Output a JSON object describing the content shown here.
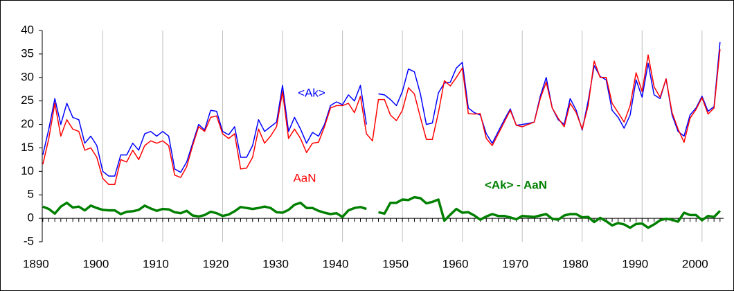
{
  "chart_data": {
    "type": "line",
    "x": [
      1890,
      1891,
      1892,
      1893,
      1894,
      1895,
      1896,
      1897,
      1898,
      1899,
      1900,
      1901,
      1902,
      1903,
      1904,
      1905,
      1906,
      1907,
      1908,
      1909,
      1910,
      1911,
      1912,
      1913,
      1914,
      1915,
      1916,
      1917,
      1918,
      1919,
      1920,
      1921,
      1922,
      1923,
      1924,
      1925,
      1926,
      1927,
      1928,
      1929,
      1930,
      1931,
      1932,
      1933,
      1934,
      1935,
      1936,
      1937,
      1938,
      1939,
      1940,
      1941,
      1942,
      1943,
      1944,
      1945,
      1946,
      1947,
      1948,
      1949,
      1950,
      1951,
      1952,
      1953,
      1954,
      1955,
      1956,
      1957,
      1958,
      1959,
      1960,
      1961,
      1962,
      1963,
      1964,
      1965,
      1966,
      1967,
      1968,
      1969,
      1970,
      1971,
      1972,
      1973,
      1974,
      1975,
      1976,
      1977,
      1978,
      1979,
      1980,
      1981,
      1982,
      1983,
      1984,
      1985,
      1986,
      1987,
      1988,
      1989,
      1990,
      1991,
      1992,
      1993,
      1994,
      1995,
      1996,
      1997,
      1998,
      1999,
      2000,
      2001,
      2002,
      2003
    ],
    "series": [
      {
        "name": "<Ak>",
        "color": "#0000ff",
        "values": [
          13.5,
          19,
          25.5,
          20,
          24.5,
          21.5,
          21,
          16,
          17.5,
          15.5,
          10,
          9,
          9,
          13.5,
          13.5,
          16,
          14.5,
          18,
          18.5,
          17.5,
          18.5,
          17.5,
          10.5,
          9.8,
          12,
          16,
          20,
          18.8,
          23,
          22.8,
          18.5,
          17.8,
          19.5,
          13,
          13,
          15.5,
          21,
          18.5,
          19.5,
          20.5,
          28.3,
          18.5,
          21.5,
          19,
          16,
          18.3,
          17.5,
          20,
          24,
          24.8,
          24.2,
          26.3,
          25,
          28.3,
          20,
          null,
          26.5,
          26.3,
          25.3,
          24,
          27,
          31.8,
          31.2,
          26.5,
          20,
          20.3,
          26.7,
          28.8,
          29,
          32,
          33.2,
          23.5,
          22.5,
          22,
          18,
          16,
          18.5,
          21,
          23.3,
          19.8,
          20,
          20.2,
          20.5,
          26,
          30,
          23.5,
          21,
          20,
          25.5,
          23,
          18.8,
          25,
          32.5,
          30.2,
          29.5,
          23,
          21.5,
          19.2,
          22,
          29.5,
          25.8,
          33,
          26.3,
          25.5,
          29.7,
          22,
          18.5,
          17.5,
          22,
          23.5,
          26,
          22.8,
          23.8,
          37.5
        ]
      },
      {
        "name": "AaN",
        "color": "#ff0000",
        "values": [
          11.5,
          17,
          24.5,
          17.5,
          21,
          19,
          18.5,
          14.5,
          15,
          13,
          8.5,
          7.2,
          7.2,
          12.5,
          12,
          14.5,
          12.5,
          15.5,
          16.5,
          16,
          16.5,
          15.5,
          9.2,
          8.7,
          11,
          15.5,
          19.5,
          18.5,
          21.5,
          21.8,
          18,
          17,
          18,
          10.5,
          10.7,
          13,
          19,
          16,
          17.5,
          19.5,
          27,
          17,
          19,
          17,
          14,
          16,
          16.2,
          19.5,
          23.5,
          24,
          24,
          24.5,
          22.5,
          26,
          18,
          16.5,
          25.3,
          25.3,
          22,
          20.8,
          23,
          27.8,
          26.5,
          21.5,
          16.8,
          16.8,
          22.5,
          29.3,
          28.2,
          30,
          32,
          22.3,
          22.2,
          22.3,
          17,
          15.5,
          18,
          20.5,
          23,
          19.8,
          19.5,
          20,
          20.5,
          25.5,
          29,
          23.5,
          21.3,
          19.5,
          24.5,
          22.5,
          19,
          24,
          33.5,
          30,
          30,
          24.5,
          22.5,
          20.5,
          24,
          31,
          27,
          34.8,
          28,
          25.8,
          29.7,
          22.5,
          19,
          16.2,
          21.3,
          23.2,
          25.7,
          22.2,
          23.5,
          36
        ]
      },
      {
        "name": "<Ak> - AaN",
        "color": "#008000",
        "values": [
          2.5,
          2.0,
          1.0,
          2.5,
          3.3,
          2.3,
          2.5,
          1.7,
          2.7,
          2.2,
          1.8,
          1.7,
          1.7,
          0.9,
          1.4,
          1.5,
          1.8,
          2.7,
          2.1,
          1.6,
          2.0,
          1.9,
          1.3,
          1.1,
          1.6,
          0.6,
          0.4,
          0.7,
          1.4,
          1.1,
          0.5,
          0.8,
          1.5,
          2.4,
          2.2,
          2.0,
          2.2,
          2.5,
          2.2,
          1.3,
          1.2,
          1.8,
          2.9,
          3.3,
          2.2,
          2.2,
          1.6,
          1.2,
          0.9,
          1.1,
          0.3,
          1.7,
          2.2,
          2.4,
          2.0,
          null,
          1.3,
          1.0,
          3.3,
          3.3,
          4.0,
          3.9,
          4.5,
          4.3,
          3.2,
          3.5,
          4.0,
          -0.5,
          0.8,
          2.0,
          1.2,
          1.3,
          0.6,
          -0.3,
          0.4,
          0.9,
          0.5,
          0.5,
          0.2,
          -0.2,
          0.5,
          0.4,
          0.3,
          0.6,
          0.9,
          -0.1,
          -0.3,
          0.6,
          0.9,
          0.9,
          0.2,
          0.3,
          -0.8,
          0.1,
          -0.6,
          -1.5,
          -1.0,
          -1.3,
          -2.0,
          -1.2,
          -1.1,
          -2.0,
          -1.3,
          -0.4,
          -0.1,
          -0.3,
          -0.7,
          1.2,
          0.7,
          0.7,
          -0.4,
          0.5,
          0.3,
          1.6
        ]
      }
    ],
    "xlim": [
      1889.9,
      2003.6
    ],
    "xticks": [
      1890,
      1900,
      1910,
      1920,
      1930,
      1940,
      1950,
      1960,
      1970,
      1980,
      1990,
      2000
    ],
    "ylim": [
      -5,
      40
    ],
    "yticks": [
      -5,
      0,
      5,
      10,
      15,
      20,
      25,
      30,
      35,
      40
    ],
    "grid": true
  }
}
